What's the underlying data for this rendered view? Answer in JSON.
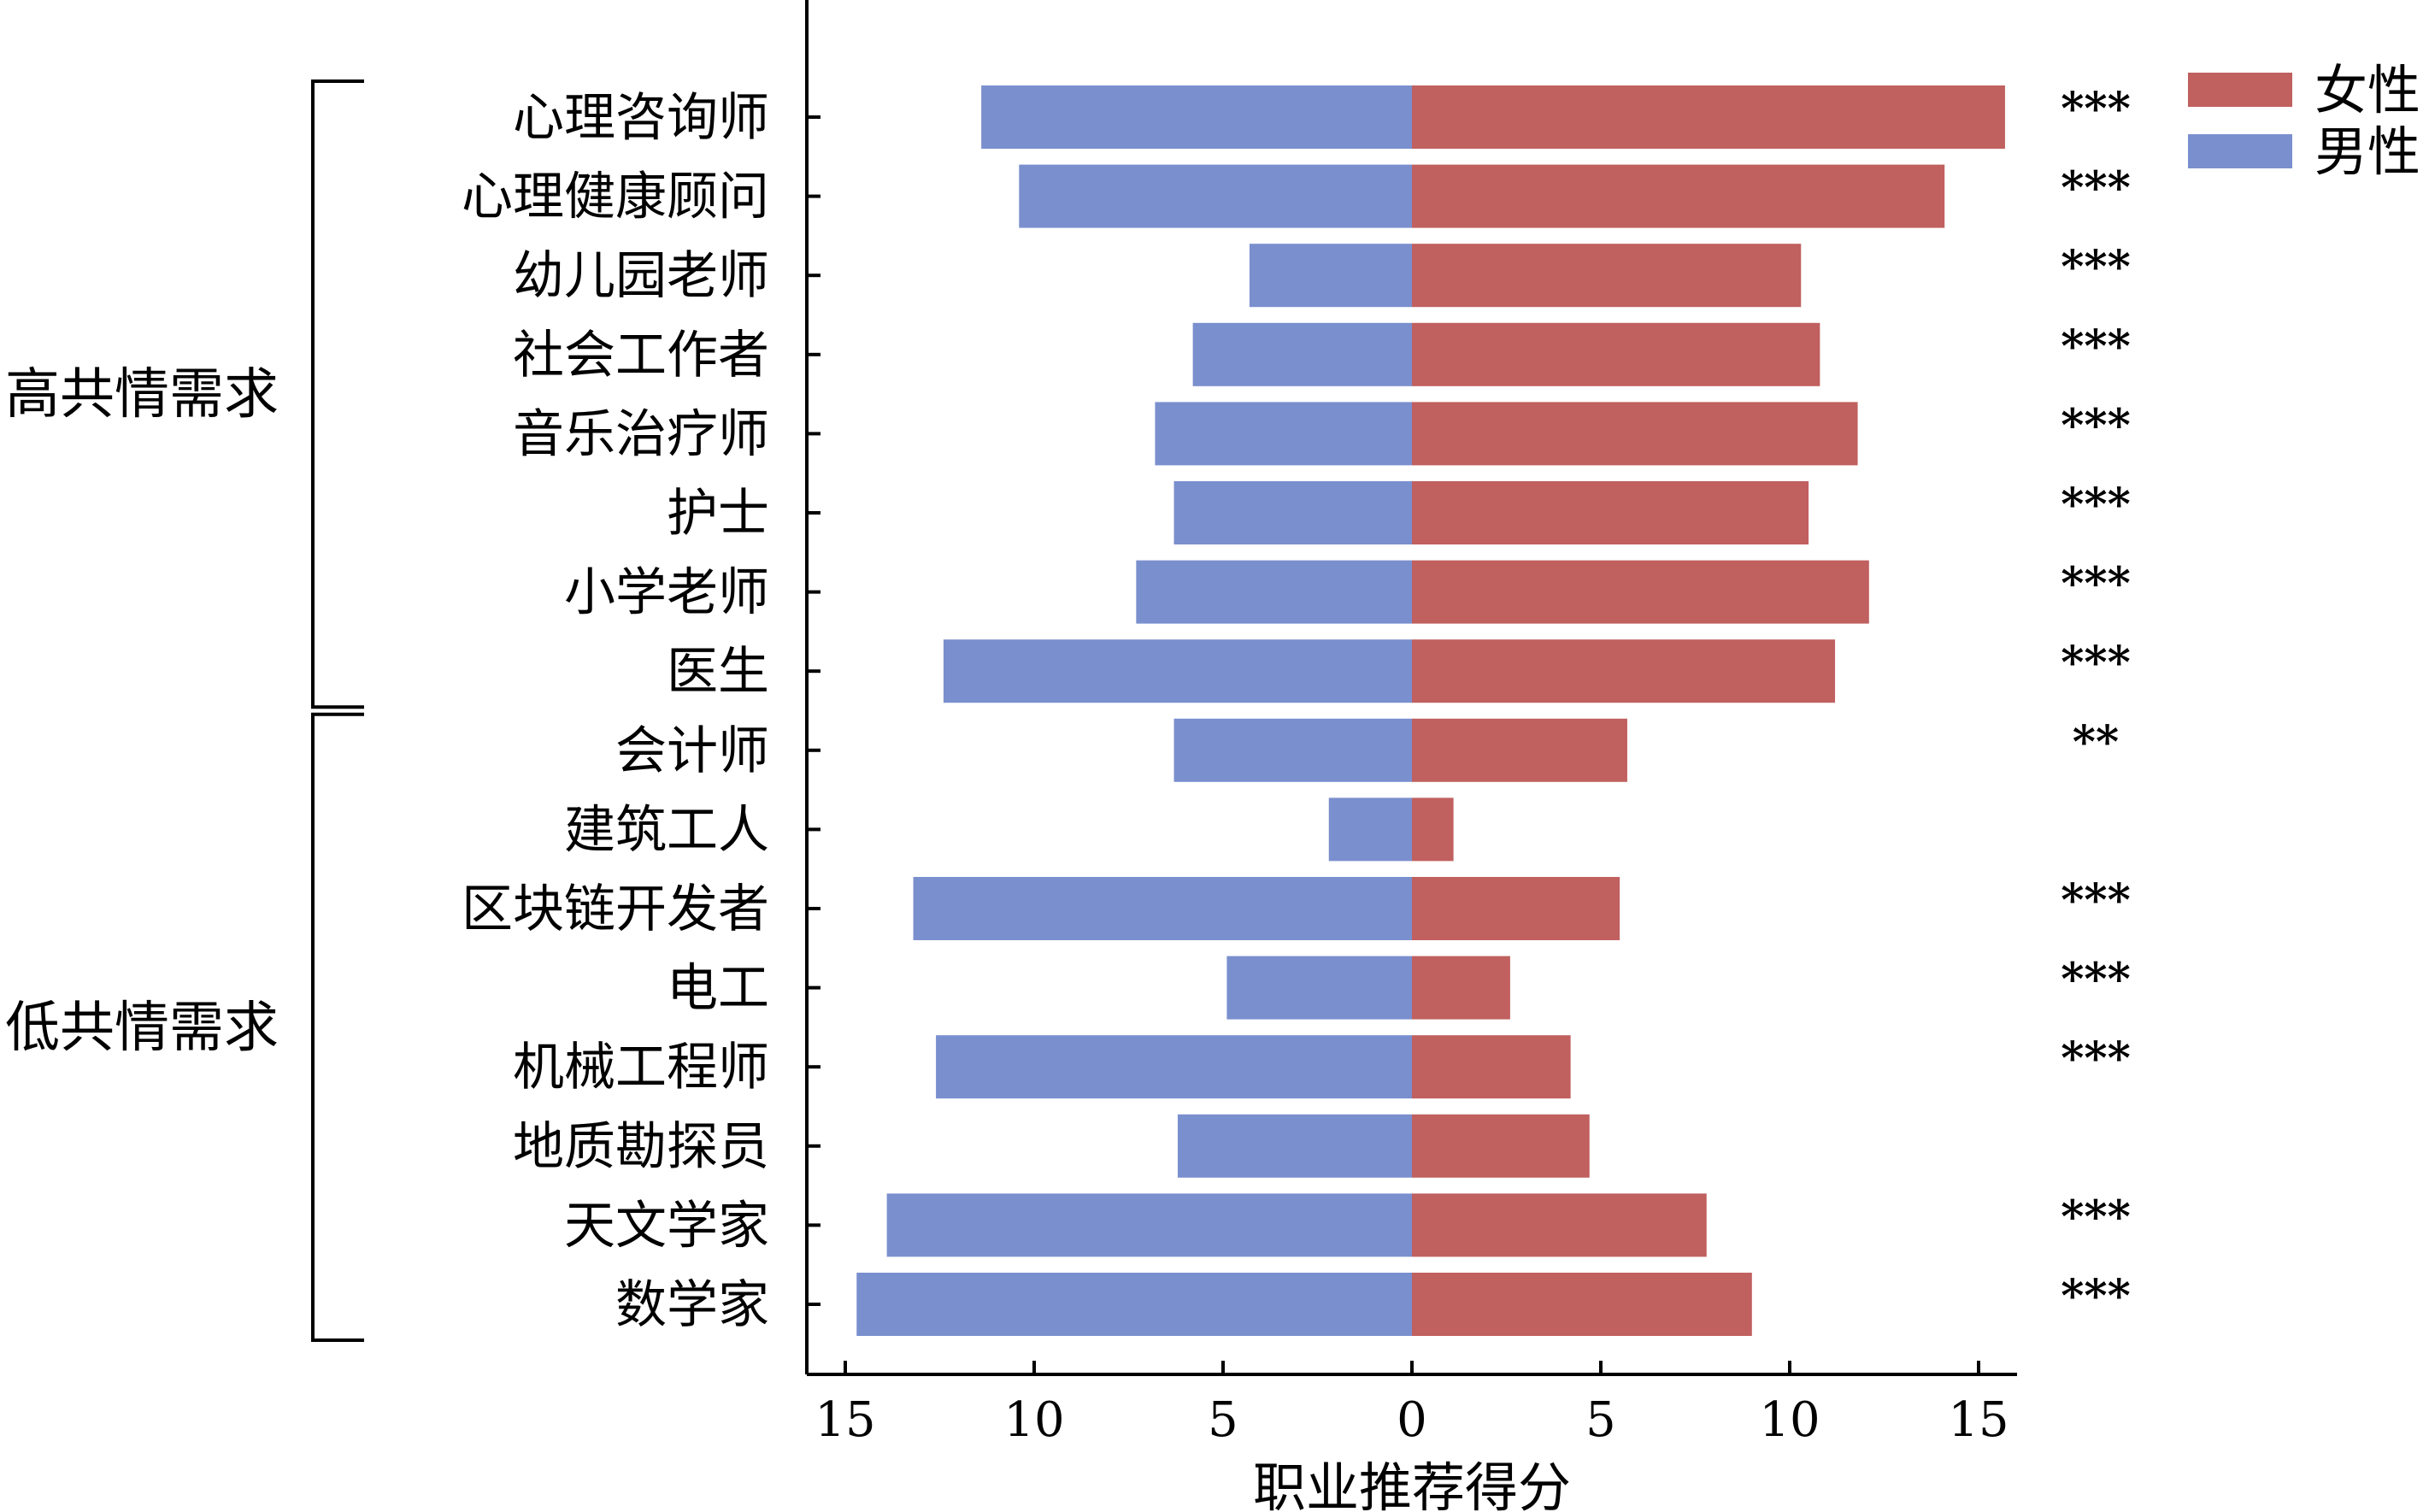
{
  "chart_data": {
    "type": "bar",
    "orientation": "horizontal-diverging",
    "title": "",
    "xlabel": "职业推荐得分",
    "ylabel": "",
    "xlim": [
      -15.5,
      15.5
    ],
    "x_ticks": [
      -15,
      -10,
      -5,
      0,
      5,
      10,
      15
    ],
    "x_tick_labels": [
      "15",
      "10",
      "5",
      "0",
      "5",
      "10",
      "15"
    ],
    "grid": false,
    "legend_position": "top-right",
    "categories": [
      "心理咨询师",
      "心理健康顾问",
      "幼儿园老师",
      "社会工作者",
      "音乐治疗师",
      "护士",
      "小学老师",
      "医生",
      "会计师",
      "建筑工人",
      "区块链开发者",
      "电工",
      "机械工程师",
      "地质勘探员",
      "天文学家",
      "数学家"
    ],
    "series": [
      {
        "name": "女性",
        "color": "#c0605f",
        "values": [
          15.7,
          14.1,
          10.3,
          10.8,
          11.8,
          10.5,
          12.1,
          11.2,
          5.7,
          1.1,
          5.5,
          2.6,
          4.2,
          4.7,
          7.8,
          9.0
        ]
      },
      {
        "name": "男性",
        "color": "#7a8fce",
        "values": [
          11.4,
          10.4,
          4.3,
          5.8,
          6.8,
          6.3,
          7.3,
          12.4,
          6.3,
          2.2,
          13.2,
          4.9,
          12.6,
          6.2,
          13.9,
          14.7
        ]
      }
    ],
    "significance": [
      "***",
      "***",
      "***",
      "***",
      "***",
      "***",
      "***",
      "***",
      "**",
      "",
      "***",
      "***",
      "***",
      "",
      "***",
      "***"
    ],
    "groups": [
      {
        "label": "高共情需求",
        "from": 0,
        "to": 7
      },
      {
        "label": "低共情需求",
        "from": 8,
        "to": 15
      }
    ]
  }
}
